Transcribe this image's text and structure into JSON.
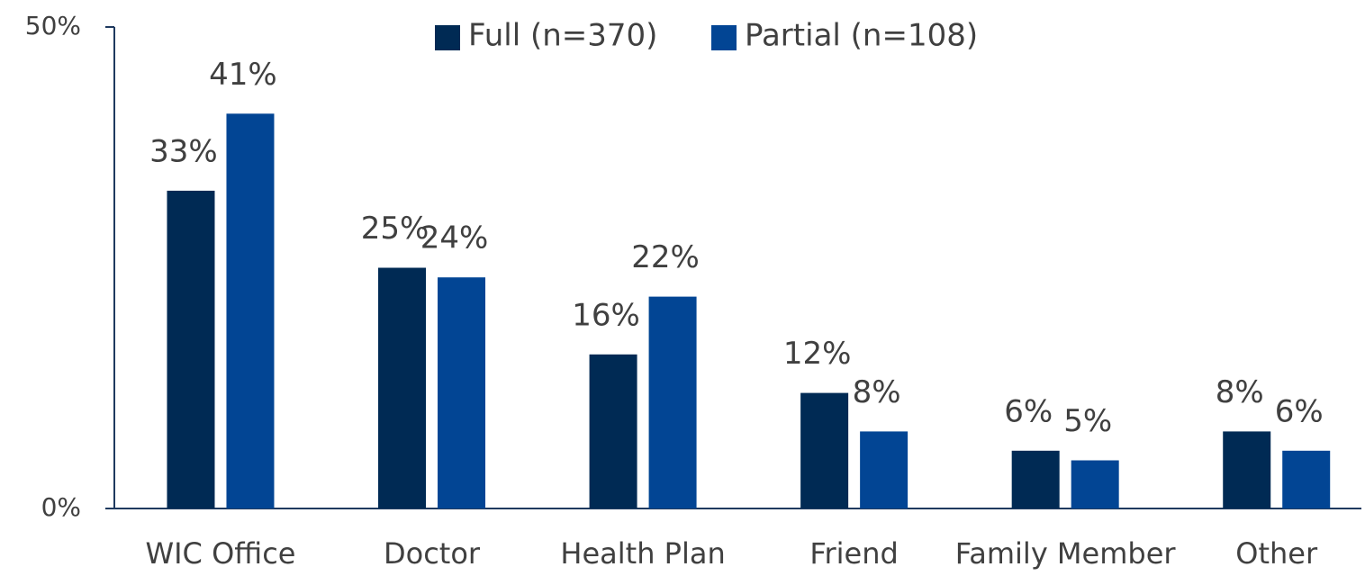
{
  "chart_data": {
    "type": "bar",
    "categories": [
      "WIC Office",
      "Doctor",
      "Health Plan",
      "Friend",
      "Family Member",
      "Other"
    ],
    "series": [
      {
        "name": "Full (n=370)",
        "color": "#002a54",
        "values": [
          33,
          25,
          16,
          12,
          6,
          8
        ],
        "value_labels": [
          "33%",
          "25%",
          "16%",
          "12%",
          "6%",
          "8%"
        ]
      },
      {
        "name": "Partial (n=108)",
        "color": "#024594",
        "values": [
          41,
          24,
          22,
          8,
          5,
          6
        ],
        "value_labels": [
          "41%",
          "24%",
          "22%",
          "8%",
          "5%",
          "6%"
        ]
      }
    ],
    "ylim": [
      0,
      50
    ],
    "yticks": [
      {
        "value": 0,
        "label": "0%"
      },
      {
        "value": 50,
        "label": "50%"
      }
    ],
    "legend": "top"
  }
}
